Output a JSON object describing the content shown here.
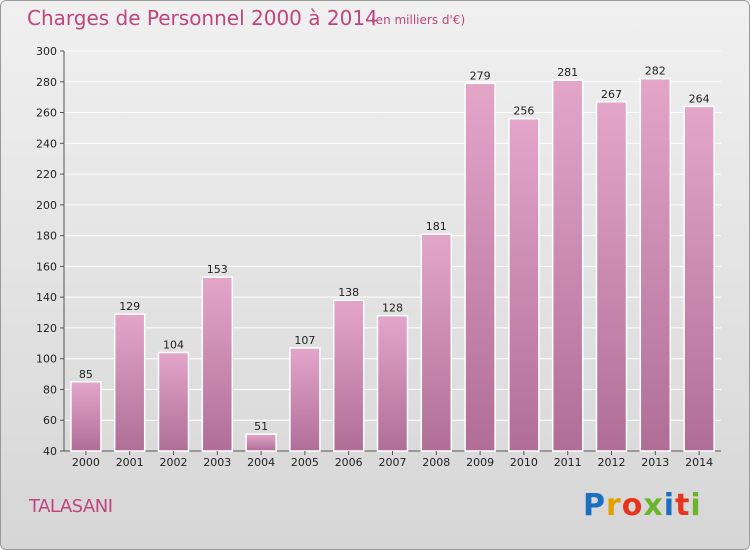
{
  "header": {
    "title": "Charges de Personnel 2000 à 2014",
    "subtitle": "(en milliers d'€)"
  },
  "footer": {
    "commune": "TALASANI",
    "logo_text": "Proxiti",
    "logo_colors": [
      "#1a6fc0",
      "#e0a000",
      "#e8341c",
      "#6ab52a",
      "#1a6fc0",
      "#e8341c",
      "#6ab52a"
    ]
  },
  "colors": {
    "bar_top": "#e3a6c9",
    "bar_bottom": "#b06e97",
    "grid": "#ffffff",
    "text": "#c0457e"
  },
  "chart_data": {
    "type": "bar",
    "categories": [
      "2000",
      "2001",
      "2002",
      "2003",
      "2004",
      "2005",
      "2006",
      "2007",
      "2008",
      "2009",
      "2010",
      "2011",
      "2012",
      "2013",
      "2014"
    ],
    "values": [
      85,
      129,
      104,
      153,
      51,
      107,
      138,
      128,
      181,
      279,
      256,
      281,
      267,
      282,
      264
    ],
    "title": "Charges de Personnel 2000 à 2014",
    "subtitle": "(en milliers d'€)",
    "ylim": [
      40,
      300
    ],
    "yticks": [
      40,
      60,
      80,
      100,
      120,
      140,
      160,
      180,
      200,
      220,
      240,
      260,
      280,
      300
    ],
    "grid": true,
    "data_labels": true
  }
}
